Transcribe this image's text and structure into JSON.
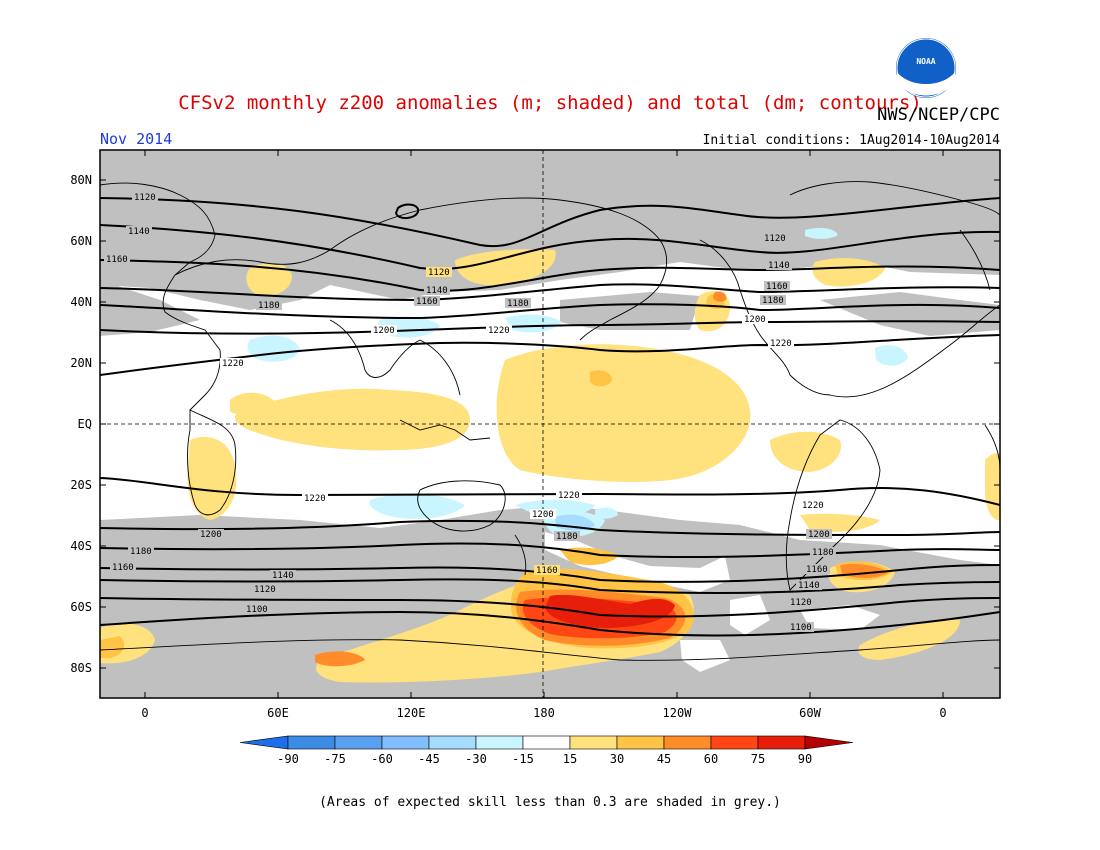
{
  "header": {
    "title": "CFSv2 monthly z200 anomalies (m; shaded) and total (dm; contours)",
    "org": "NWS/NCEP/CPC",
    "period": "Nov 2014",
    "initial_conditions": "Initial conditions: 1Aug2014-10Aug2014",
    "logo_text": "NOAA"
  },
  "colors": {
    "title": "#e00000",
    "period": "#1e3cdc",
    "grey_mask": "#c0c0c0",
    "land_outline": "#000000"
  },
  "axes": {
    "lat_labels": [
      "80N",
      "60N",
      "40N",
      "20N",
      "EQ",
      "20S",
      "40S",
      "60S",
      "80S"
    ],
    "lon_labels": [
      "0",
      "60E",
      "120E",
      "180",
      "120W",
      "60W",
      "0"
    ]
  },
  "contour_labels": [
    "1100",
    "1120",
    "1140",
    "1160",
    "1180",
    "1200",
    "1220"
  ],
  "colorbar": {
    "ticks": [
      "-90",
      "-75",
      "-60",
      "-45",
      "-30",
      "-15",
      "15",
      "30",
      "45",
      "60",
      "75",
      "90"
    ],
    "colors": [
      "#1e6eeb",
      "#3c8ce6",
      "#5aa0f0",
      "#82beff",
      "#a5dcff",
      "#c8f5ff",
      "#ffffff",
      "#ffe17d",
      "#ffc346",
      "#ff8c28",
      "#ff4614",
      "#e61e0a",
      "#b40000"
    ]
  },
  "footnote": "(Areas of expected skill less than 0.3 are shaded in grey.)"
}
